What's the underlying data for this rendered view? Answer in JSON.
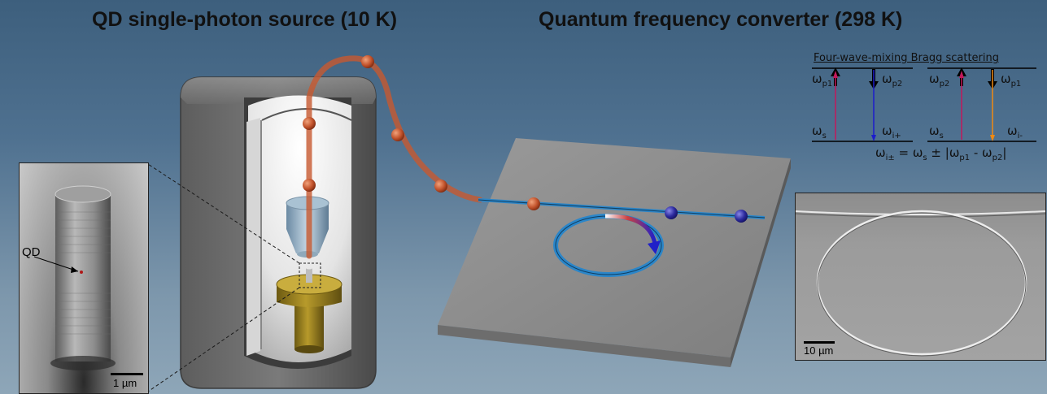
{
  "titles": {
    "left": "QD single-photon source (10 K)",
    "right": "Quantum frequency converter (298 K)"
  },
  "sem_pillar": {
    "label": "QD",
    "scale_bar": "1 µm"
  },
  "sem_ring": {
    "scale_bar": "10 µm"
  },
  "energy_diagram": {
    "heading": "Four-wave-mixing Bragg scattering",
    "left": {
      "top_left": "p1",
      "top_right": "p2",
      "bottom_left": "s",
      "bottom_right": "i+"
    },
    "right": {
      "top_left": "p2",
      "top_right": "p1",
      "bottom_left": "s",
      "bottom_right": "i-"
    },
    "equation": {
      "lhs_sub": "i±",
      "rhs_s_sub": "s",
      "op": "±",
      "p1_sub": "p1",
      "p2_sub": "p2"
    },
    "omega": "ω"
  },
  "colors": {
    "photon_red": "#c3542d",
    "photon_blue": "#2c2a9e",
    "ring_cyan": "#2b86c9",
    "signal_arrow": "#c2185b",
    "idler_plus_arrow": "#1c1ccc",
    "idler_minus_arrow": "#f08a12",
    "fiber": "#c7592f"
  }
}
